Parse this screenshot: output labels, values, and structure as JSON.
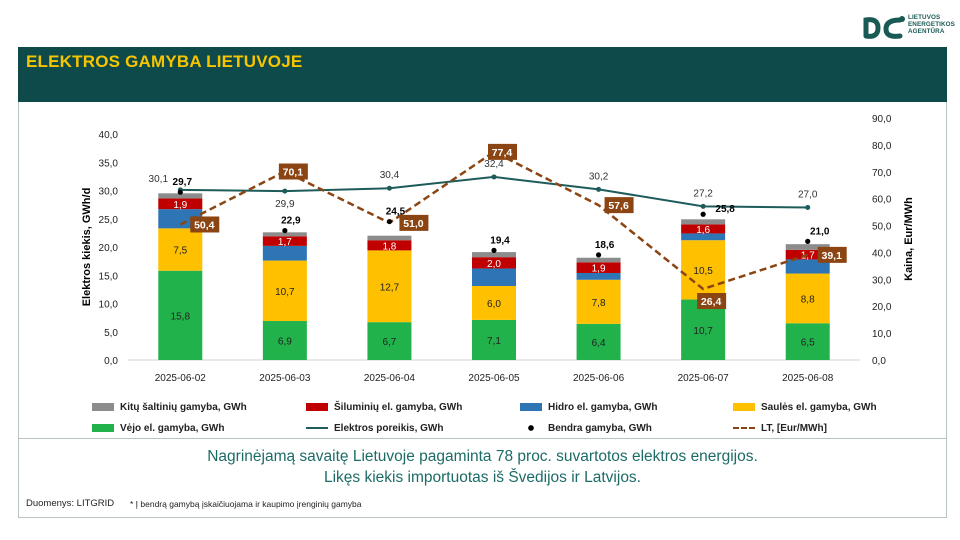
{
  "header": {
    "title": "ELEKTROS GAMYBA LIETUVOJE"
  },
  "logo": {
    "lines": [
      "LIETUVOS",
      "ENERGETIKOS",
      "AGENTŪRA"
    ],
    "color": "#1a5a55"
  },
  "summary": {
    "line1": "Nagrinėjamą savaitę Lietuvoje pagaminta 78 proc. suvartotos elektros energijos.",
    "line2": "Likęs kiekis importuotas iš Švedijos ir Latvijos."
  },
  "footer": {
    "source": "Duomenys: LITGRID",
    "note": "* Į bendrą gamybą įskaičiuojama ir kaupimo įrenginių gamyba"
  },
  "chart_data": {
    "type": "bar",
    "stacked": true,
    "categories": [
      "2025-06-02",
      "2025-06-03",
      "2025-06-04",
      "2025-06-05",
      "2025-06-06",
      "2025-06-07",
      "2025-06-08"
    ],
    "ylabel": "Elektros kiekis, GWh/d",
    "y2label": "Kaina, Eur/MWh",
    "ylim": [
      0,
      40
    ],
    "y2lim": [
      0,
      90
    ],
    "yticks": [
      "0,0",
      "5,0",
      "10,0",
      "15,0",
      "20,0",
      "25,0",
      "30,0",
      "35,0",
      "40,0"
    ],
    "y2ticks": [
      "0,0",
      "10,0",
      "20,0",
      "30,0",
      "40,0",
      "50,0",
      "60,0",
      "70,0",
      "80,0",
      "90,0"
    ],
    "series": [
      {
        "name": "Vėjo el. gamyba, GWh",
        "type": "bar",
        "color": "#21b24b",
        "values": [
          15.8,
          6.9,
          6.7,
          7.1,
          6.4,
          10.7,
          6.5
        ],
        "labels": [
          "15,8",
          "6,9",
          "6,7",
          "7,1",
          "6,4",
          "10,7",
          "6,5"
        ]
      },
      {
        "name": "Saulės el. gamyba, GWh",
        "type": "bar",
        "color": "#ffc000",
        "values": [
          7.5,
          10.7,
          12.7,
          6.0,
          7.8,
          10.5,
          8.8
        ],
        "labels": [
          "7,5",
          "10,7",
          "12,7",
          "6,0",
          "7,8",
          "10,5",
          "8,8"
        ]
      },
      {
        "name": "Hidro el. gamyba, GWh",
        "type": "bar",
        "color": "#2e75b6",
        "values": [
          3.4,
          2.6,
          0.0,
          3.1,
          1.2,
          1.2,
          2.5
        ],
        "labels": [
          "",
          "",
          "",
          "",
          "",
          "",
          ""
        ]
      },
      {
        "name": "Šiluminių el. gamyba, GWh",
        "type": "bar",
        "color": "#c00000",
        "values": [
          1.9,
          1.7,
          1.8,
          2.0,
          1.9,
          1.6,
          1.7
        ],
        "labels": [
          "1,9",
          "1,7",
          "1,8",
          "2,0",
          "1,9",
          "1,6",
          "1,7"
        ]
      },
      {
        "name": "Kitų šaltinių gamyba,  GWh",
        "type": "bar",
        "color": "#8c8c8c",
        "values": [
          0.9,
          0.7,
          0.8,
          0.9,
          0.8,
          0.9,
          1.0
        ],
        "labels": [
          "",
          "",
          "",
          "",
          "",
          "",
          ""
        ]
      },
      {
        "name": "Elektros poreikis, GWh",
        "type": "line",
        "color": "#1d5c5a",
        "values": [
          30.1,
          29.9,
          30.4,
          32.4,
          30.2,
          27.2,
          27.0
        ],
        "labels": [
          "30,1",
          "29,9",
          "30,4",
          "32,4",
          "30,2",
          "27,2",
          "27,0"
        ]
      },
      {
        "name": "Bendra gamyba, GWh",
        "type": "scatter",
        "color": "#000000",
        "values": [
          29.7,
          22.9,
          24.5,
          19.4,
          18.6,
          25.8,
          21.0
        ],
        "labels": [
          "29,7",
          "22,9",
          "24,5",
          "19,4",
          "18,6",
          "25,8",
          "21,0"
        ]
      },
      {
        "name": "LT, [Eur/MWh]",
        "type": "line",
        "axis": "y2",
        "color": "#8b4513",
        "values": [
          50.4,
          70.1,
          51.0,
          77.4,
          57.6,
          26.4,
          39.1
        ],
        "labels": [
          "50,4",
          "70,1",
          "51,0",
          "77,4",
          "57,6",
          "26,4",
          "39,1"
        ]
      }
    ],
    "legend": [
      [
        "Kitų šaltinių gamyba,  GWh",
        "Šiluminių el. gamyba, GWh",
        "Hidro el. gamyba, GWh",
        "Saulės el. gamyba, GWh"
      ],
      [
        "Vėjo el. gamyba, GWh",
        "Elektros poreikis, GWh",
        "Bendra gamyba, GWh",
        "LT, [Eur/MWh]"
      ]
    ],
    "legend_position": "bottom"
  }
}
